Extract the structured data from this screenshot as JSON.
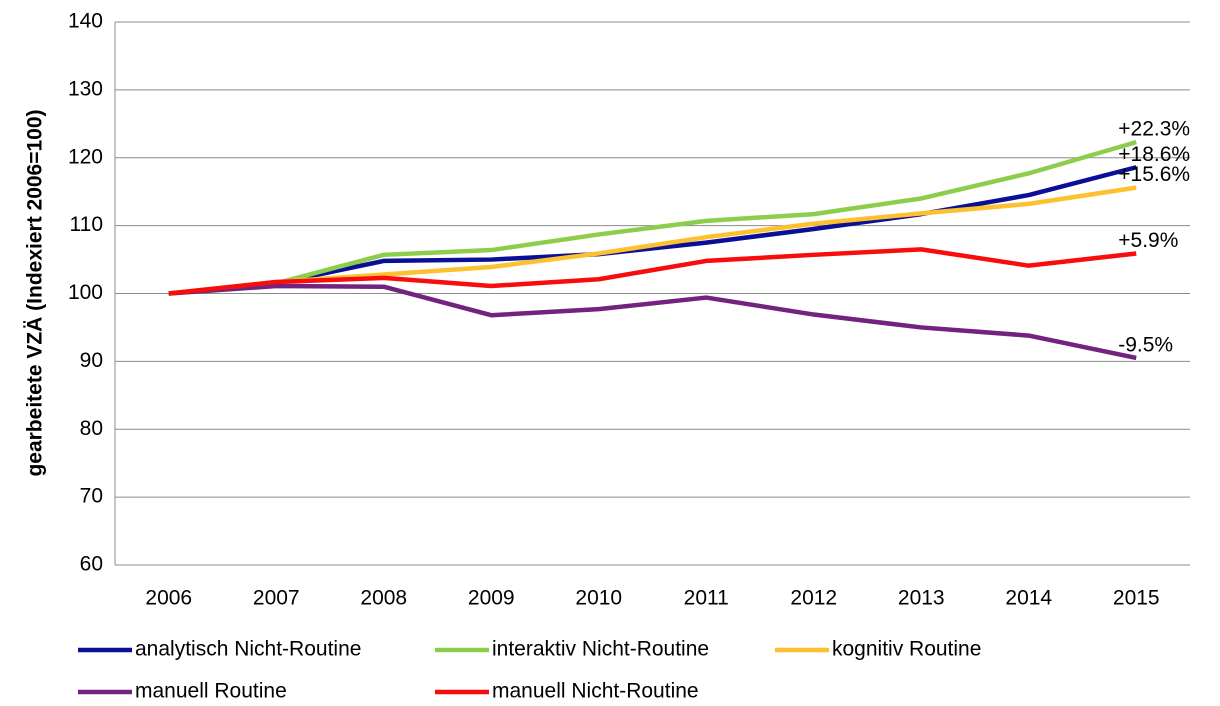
{
  "chart_data": {
    "type": "line",
    "y_label": "gearbeitete VZÄ (Indexiert 2006=100)",
    "categories": [
      "2006",
      "2007",
      "2008",
      "2009",
      "2010",
      "2011",
      "2012",
      "2013",
      "2014",
      "2015"
    ],
    "series": [
      {
        "name": "analytisch Nicht-Routine",
        "color": "#0a0f96",
        "values": [
          100,
          101.5,
          104.8,
          105,
          105.8,
          107.5,
          109.5,
          111.7,
          114.5,
          118.6
        ],
        "value_labels": [
          null,
          null,
          null,
          null,
          null,
          null,
          null,
          null,
          null,
          "+18.6%"
        ]
      },
      {
        "name": "interaktiv Nicht-Routine",
        "color": "#8cce4c",
        "values": [
          100,
          101.5,
          105.7,
          106.4,
          108.7,
          110.7,
          111.7,
          114,
          117.7,
          122.3
        ],
        "value_labels": [
          null,
          null,
          null,
          null,
          null,
          null,
          null,
          null,
          null,
          "+22.3%"
        ]
      },
      {
        "name": "kognitiv Routine",
        "color": "#fdc02f",
        "values": [
          100,
          101.7,
          102.8,
          103.9,
          105.9,
          108.3,
          110.3,
          111.8,
          113.2,
          115.6
        ],
        "value_labels": [
          null,
          null,
          null,
          null,
          null,
          null,
          null,
          null,
          null,
          "+15.6%"
        ]
      },
      {
        "name": "manuell Routine",
        "color": "#74227f",
        "values": [
          100,
          101.1,
          101,
          96.8,
          97.7,
          99.4,
          96.9,
          95,
          93.8,
          90.5
        ],
        "value_labels": [
          null,
          null,
          null,
          null,
          null,
          null,
          null,
          null,
          null,
          "-9.5%"
        ]
      },
      {
        "name": "manuell Nicht-Routine",
        "color": "#f80d0d",
        "values": [
          100,
          101.7,
          102.3,
          101.1,
          102.1,
          104.8,
          105.7,
          106.5,
          104.1,
          105.9
        ],
        "value_labels": [
          null,
          null,
          null,
          null,
          null,
          null,
          null,
          null,
          null,
          "+5.9%"
        ]
      }
    ],
    "ylim": [
      60,
      140
    ],
    "yticks": [
      60,
      70,
      80,
      90,
      100,
      110,
      120,
      130,
      140
    ],
    "grid": true
  }
}
